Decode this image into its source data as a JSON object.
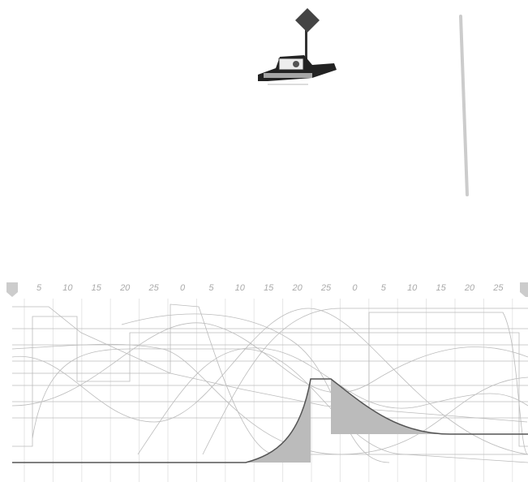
{
  "timeline": {
    "ruler_labels": [
      "5",
      "10",
      "15",
      "20",
      "25",
      "0",
      "5",
      "10",
      "15",
      "20",
      "25",
      "0",
      "5",
      "10",
      "15",
      "20",
      "25"
    ]
  }
}
